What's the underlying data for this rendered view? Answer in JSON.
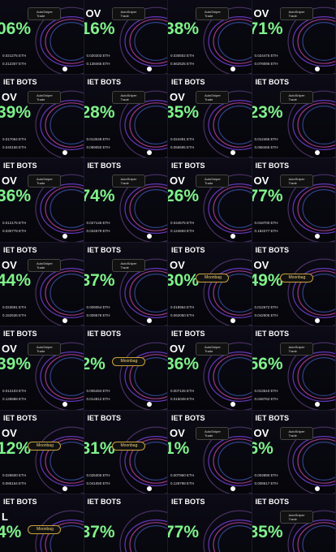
{
  "tiles": [
    {
      "percent": "06%",
      "badge": "AutoSniper Trade",
      "eth": [
        "0.021275 ETH",
        "0.212307 ETH"
      ]
    },
    {
      "label": "OV",
      "percent": "16%",
      "badge": "AutoSniper Trade",
      "eth": [
        "0.020203 ETH",
        "0.138465 ETH"
      ]
    },
    {
      "percent": "38%",
      "badge": "AutoSniper Trade",
      "eth": [
        "0.030502 ETH",
        "0.562525 ETH"
      ]
    },
    {
      "label": "OV",
      "percent": "71%",
      "badge": "AutoSniper Trade",
      "eth": [
        "0.024475 ETH",
        "0.078095 ETH"
      ]
    },
    {
      "header": "IET BOTS",
      "label": "OV",
      "percent": "39%",
      "badge": "AutoSniper Trade",
      "eth": [
        "0.017064 ETH",
        "0.040156 ETH"
      ]
    },
    {
      "header": "IET BOTS",
      "percent": "28%",
      "badge": "AutoSniper Trade",
      "eth": [
        "0.013048 ETH",
        "0.089050 ETH"
      ]
    },
    {
      "header": "IET BOTS",
      "label": "OV",
      "percent": "35%",
      "badge": "AutoSniper Trade",
      "eth": [
        "0.024491 ETH",
        "0.056595 ETH"
      ]
    },
    {
      "header": "IET BOTS",
      "percent": "23%",
      "badge": "AutoSniper Trade",
      "eth": [
        "0.012465 ETH",
        "0.068465 ETH"
      ]
    },
    {
      "header": "IET BOTS",
      "label": "OV",
      "percent": "36%",
      "badge": "AutoSniper Trade",
      "eth": [
        "0.012175 ETH",
        "0.030779 ETH"
      ]
    },
    {
      "header": "IET BOTS",
      "percent": "74%",
      "badge": "AutoSniper Trade",
      "eth": [
        "0.027146 ETH",
        "0.034579 ETH"
      ]
    },
    {
      "header": "IET BOTS",
      "label": "OV",
      "percent": "26%",
      "badge": "AutoSniper Trade",
      "eth": [
        "0.044575 ETH",
        "0.124593 ETH"
      ]
    },
    {
      "header": "IET BOTS",
      "label": "OV",
      "percent": "77%",
      "badge": "AutoSniper Trade",
      "eth": [
        "0.018700 ETH",
        "0.182277 ETH"
      ]
    },
    {
      "header": "IET BOTS",
      "label": "OV",
      "percent": "44%",
      "badge": "AutoSniper Trade",
      "eth": [
        "0.023691 ETH",
        "0.152536 ETH"
      ]
    },
    {
      "header": "IET BOTS",
      "percent": "37%",
      "badge": "AutoSniper Trade",
      "eth": [
        "0.009054 ETH",
        "0.009578 ETH"
      ]
    },
    {
      "header": "IET BOTS",
      "label": "OV",
      "percent": "30%",
      "badge": "Moonbag",
      "eth": [
        "0.018964 ETH",
        "0.062050 ETH"
      ]
    },
    {
      "header": "IET BOTS",
      "label": "OV",
      "percent": "49%",
      "badge": "Moonbag",
      "eth": [
        "0.012672 ETH",
        "0.042505 ETH"
      ]
    },
    {
      "header": "IET BOTS",
      "label": "OV",
      "percent": "39%",
      "badge": "AutoSniper Trade",
      "eth": [
        "0.012103 ETH",
        "0.128888 ETH"
      ]
    },
    {
      "header": "IET BOTS",
      "percent": "2%",
      "badge": "Moonbag",
      "eth": [
        "0.005494 ETH",
        "0.014812 ETH"
      ]
    },
    {
      "header": "IET BOTS",
      "label": "OV",
      "percent": "36%",
      "badge": "AutoSniper Trade",
      "eth": [
        "0.007125 ETH",
        "0.015049 ETH"
      ]
    },
    {
      "header": "IET BOTS",
      "percent": "56%",
      "badge": "AutoSniper Trade",
      "eth": [
        "0.013610 ETH",
        "0.048762 ETH"
      ]
    },
    {
      "header": "IET BOTS",
      "label": "OV",
      "percent": "12%",
      "badge": "Moonbag",
      "eth": [
        "0.028600 ETH",
        "0.086164 ETH"
      ]
    },
    {
      "header": "IET BOTS",
      "percent": "31%",
      "badge": "Moonbag",
      "eth": [
        "0.025305 ETH",
        "0.041050 ETH"
      ]
    },
    {
      "header": "IET BOTS",
      "label": "OV",
      "percent": "1%",
      "badge": "AutoSniper Trade",
      "eth": [
        "0.007950 ETH",
        "0.128798 ETH"
      ]
    },
    {
      "header": "IET BOTS",
      "label": "OV",
      "percent": "6%",
      "badge": "AutoSniper Trade",
      "eth": [
        "0.003880 ETH",
        "0.008617 ETH"
      ]
    },
    {
      "header": "IET BOTS",
      "label": "L",
      "percent": "4%",
      "badge": "Moonbag"
    },
    {
      "header": "IET BOTS",
      "percent": "37%"
    },
    {
      "header": "IET BOTS",
      "percent": "77%"
    },
    {
      "header": "IET BOTS",
      "percent": "35%",
      "badge": "AutoSniper Trade"
    }
  ]
}
